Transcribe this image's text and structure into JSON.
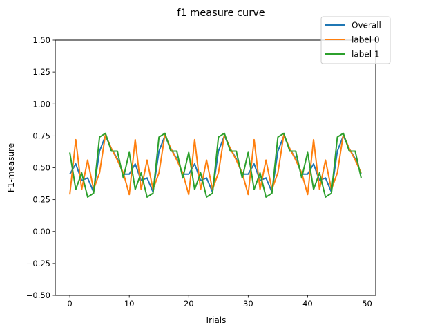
{
  "chart_data": {
    "type": "line",
    "title": "f1 measure curve",
    "xlabel": "Trials",
    "ylabel": "F1-measure",
    "xlim": [
      -2.45,
      51.45
    ],
    "ylim": [
      -0.5,
      1.5
    ],
    "xticks": [
      "0",
      "10",
      "20",
      "30",
      "40",
      "50"
    ],
    "yticks": [
      "−0.50",
      "−0.25",
      "0.00",
      "0.25",
      "0.50",
      "0.75",
      "1.00",
      "1.25",
      "1.50"
    ],
    "grid": false,
    "legend_position": "top-right",
    "x": [
      0,
      1,
      2,
      3,
      4,
      5,
      6,
      7,
      8,
      9,
      10,
      11,
      12,
      13,
      14,
      15,
      16,
      17,
      18,
      19,
      20,
      21,
      22,
      23,
      24,
      25,
      26,
      27,
      28,
      29,
      30,
      31,
      32,
      33,
      34,
      35,
      36,
      37,
      38,
      39,
      40,
      41,
      42,
      43,
      44,
      45,
      46,
      47,
      48,
      49
    ],
    "series": [
      {
        "name": "Overall",
        "color": "#1f77b4",
        "values": [
          0.45,
          0.53,
          0.4,
          0.42,
          0.31,
          0.63,
          0.75,
          0.65,
          0.57,
          0.45,
          0.45,
          0.53,
          0.4,
          0.42,
          0.31,
          0.63,
          0.75,
          0.65,
          0.57,
          0.45,
          0.45,
          0.53,
          0.4,
          0.42,
          0.31,
          0.63,
          0.75,
          0.65,
          0.57,
          0.45,
          0.45,
          0.53,
          0.4,
          0.42,
          0.31,
          0.63,
          0.75,
          0.65,
          0.57,
          0.45,
          0.45,
          0.53,
          0.4,
          0.42,
          0.31,
          0.63,
          0.75,
          0.65,
          0.57,
          0.45
        ]
      },
      {
        "name": "label 0",
        "color": "#ff7f0e",
        "values": [
          0.29,
          0.72,
          0.33,
          0.56,
          0.33,
          0.46,
          0.76,
          0.65,
          0.56,
          0.46,
          0.29,
          0.72,
          0.33,
          0.56,
          0.33,
          0.46,
          0.76,
          0.65,
          0.56,
          0.46,
          0.29,
          0.72,
          0.33,
          0.56,
          0.33,
          0.46,
          0.76,
          0.65,
          0.56,
          0.46,
          0.29,
          0.72,
          0.33,
          0.56,
          0.33,
          0.46,
          0.76,
          0.65,
          0.56,
          0.46,
          0.29,
          0.72,
          0.33,
          0.56,
          0.33,
          0.46,
          0.76,
          0.65,
          0.56,
          0.46
        ]
      },
      {
        "name": "label 1",
        "color": "#2ca02c",
        "values": [
          0.62,
          0.33,
          0.46,
          0.27,
          0.3,
          0.74,
          0.77,
          0.63,
          0.63,
          0.42,
          0.62,
          0.33,
          0.46,
          0.27,
          0.3,
          0.74,
          0.77,
          0.63,
          0.63,
          0.42,
          0.62,
          0.33,
          0.46,
          0.27,
          0.3,
          0.74,
          0.77,
          0.63,
          0.63,
          0.42,
          0.62,
          0.33,
          0.46,
          0.27,
          0.3,
          0.74,
          0.77,
          0.63,
          0.63,
          0.42,
          0.62,
          0.33,
          0.46,
          0.27,
          0.3,
          0.74,
          0.77,
          0.63,
          0.63,
          0.42
        ]
      }
    ]
  }
}
